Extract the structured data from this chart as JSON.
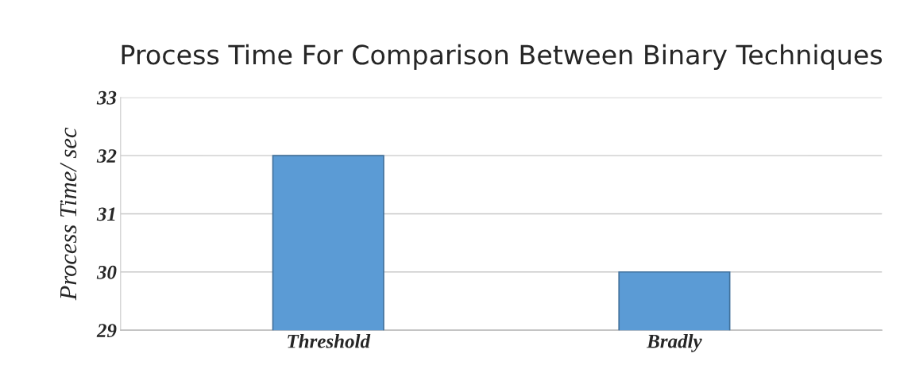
{
  "chart_data": {
    "type": "bar",
    "title": "Process Time For Comparison Between Binary Techniques",
    "ylabel": "Process Time/ sec",
    "categories": [
      "Threshold",
      "Bradly"
    ],
    "values": [
      32,
      30
    ],
    "color": "#5b9bd5",
    "ylim": [
      29,
      33
    ],
    "yticks": [
      29,
      30,
      31,
      32,
      33
    ],
    "grid": "y"
  }
}
